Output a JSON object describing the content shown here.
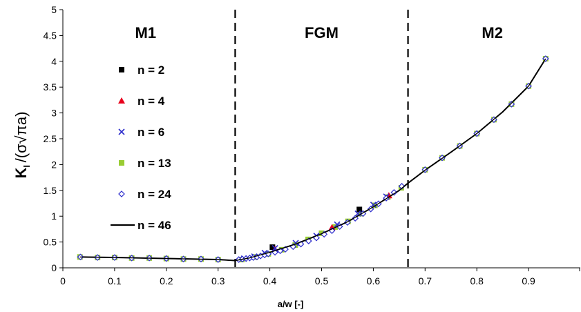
{
  "chart_data": {
    "type": "scatter",
    "xlabel": "a/w [-]",
    "ylabel": "K",
    "ylabel_sub": "I",
    "ylabel_denominator": "σ√πa",
    "xlim": [
      0,
      1
    ],
    "ylim": [
      0,
      5
    ],
    "x_ticks": [
      "0",
      "0.1",
      "0.2",
      "0.3",
      "0.4",
      "0.5",
      "0.6",
      "0.7",
      "0.8",
      "0.9"
    ],
    "y_ticks": [
      "0",
      "0.5",
      "1",
      "1.5",
      "2",
      "2.5",
      "3",
      "3.5",
      "4",
      "4.5",
      "5"
    ],
    "grid": false,
    "legend_position": "left",
    "regions": [
      {
        "label": "M1",
        "x_label": 0.16
      },
      {
        "label": "FGM",
        "x_label": 0.5
      },
      {
        "label": "M2",
        "x_label": 0.83
      }
    ],
    "boundaries": [
      0.333,
      0.667
    ],
    "series": [
      {
        "name": "n = 2",
        "marker": "square",
        "color": "#000000",
        "x": [
          0.405,
          0.573
        ],
        "y": [
          0.4,
          1.13
        ]
      },
      {
        "name": "n = 4",
        "marker": "triangle",
        "color": "#e8001c",
        "x": [
          0.41,
          0.52,
          0.63
        ],
        "y": [
          0.36,
          0.78,
          1.4
        ]
      },
      {
        "name": "n = 6",
        "marker": "x",
        "color": "#2c2ccc",
        "x": [
          0.35,
          0.37,
          0.39,
          0.41,
          0.45,
          0.49,
          0.53,
          0.57,
          0.6,
          0.625
        ],
        "y": [
          0.18,
          0.22,
          0.29,
          0.38,
          0.48,
          0.62,
          0.84,
          1.05,
          1.22,
          1.38
        ]
      },
      {
        "name": "n = 13",
        "marker": "square",
        "color": "#99cc33",
        "x": [
          0.033,
          0.067,
          0.1,
          0.133,
          0.167,
          0.2,
          0.233,
          0.267,
          0.3,
          0.346,
          0.372,
          0.397,
          0.423,
          0.449,
          0.474,
          0.5,
          0.526,
          0.551,
          0.577,
          0.603,
          0.628,
          0.654,
          0.7,
          0.733,
          0.767,
          0.8,
          0.833,
          0.867,
          0.9,
          0.933
        ],
        "y": [
          0.21,
          0.2,
          0.2,
          0.19,
          0.19,
          0.18,
          0.17,
          0.17,
          0.16,
          0.16,
          0.21,
          0.27,
          0.35,
          0.44,
          0.55,
          0.67,
          0.79,
          0.9,
          1.05,
          1.21,
          1.37,
          1.55,
          1.9,
          2.13,
          2.36,
          2.6,
          2.87,
          3.17,
          3.52,
          4.05
        ]
      },
      {
        "name": "n = 24",
        "marker": "diamond",
        "color": "#2c2ccc",
        "x": [
          0.034,
          0.067,
          0.1,
          0.133,
          0.167,
          0.2,
          0.233,
          0.267,
          0.3,
          0.34,
          0.347,
          0.354,
          0.361,
          0.368,
          0.375,
          0.382,
          0.39,
          0.397,
          0.41,
          0.42,
          0.43,
          0.445,
          0.46,
          0.475,
          0.49,
          0.505,
          0.52,
          0.535,
          0.55,
          0.565,
          0.58,
          0.595,
          0.61,
          0.625,
          0.64,
          0.655,
          0.7,
          0.733,
          0.767,
          0.8,
          0.833,
          0.867,
          0.9,
          0.933
        ],
        "y": [
          0.21,
          0.2,
          0.2,
          0.19,
          0.19,
          0.18,
          0.17,
          0.17,
          0.16,
          0.16,
          0.17,
          0.18,
          0.19,
          0.2,
          0.21,
          0.23,
          0.25,
          0.27,
          0.3,
          0.33,
          0.36,
          0.41,
          0.46,
          0.52,
          0.58,
          0.65,
          0.72,
          0.8,
          0.88,
          0.96,
          1.05,
          1.14,
          1.24,
          1.35,
          1.46,
          1.58,
          1.9,
          2.13,
          2.36,
          2.6,
          2.87,
          3.17,
          3.52,
          4.05
        ]
      },
      {
        "name": "n = 46",
        "marker": "line",
        "color": "#000000",
        "x": [
          0.033,
          0.1,
          0.2,
          0.3,
          0.333,
          0.36,
          0.4,
          0.45,
          0.5,
          0.55,
          0.6,
          0.65,
          0.667,
          0.7,
          0.75,
          0.8,
          0.85,
          0.9,
          0.933
        ],
        "y": [
          0.21,
          0.2,
          0.18,
          0.16,
          0.14,
          0.19,
          0.3,
          0.46,
          0.66,
          0.89,
          1.18,
          1.5,
          1.64,
          1.89,
          2.24,
          2.6,
          3.02,
          3.52,
          4.05
        ]
      }
    ]
  }
}
